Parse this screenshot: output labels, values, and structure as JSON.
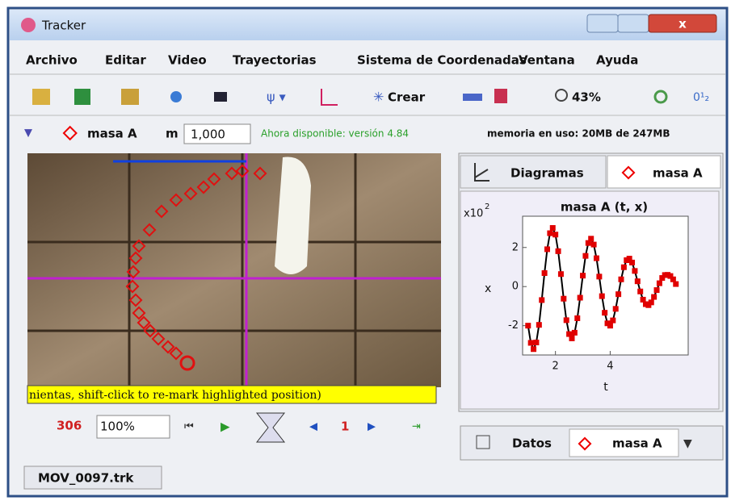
{
  "window": {
    "title": "Tracker"
  },
  "menu": [
    "Archivo",
    "Editar",
    "Video",
    "Trayectorias",
    "Sistema de Coordenadas",
    "Ventana",
    "Ayuda"
  ],
  "toolbar": {
    "create": "Crear",
    "zoom": "43%"
  },
  "trackbar": {
    "track": "masa A",
    "mass_label": "m",
    "mass": "1,000",
    "update": "Ahora disponible: versión 4.84",
    "memory": "memoria en uso: 20MB de 247MB"
  },
  "video": {
    "status": "nientas, shift-click to re-mark highlighted position)"
  },
  "player": {
    "frame": "306",
    "rate": "100%",
    "step": "1"
  },
  "tabs": {
    "plot_tab": "Diagramas",
    "track_tab": "masa A",
    "data_tab": "Datos",
    "data_track": "masa A",
    "file": "MOV_0097.trk"
  },
  "chart_data": {
    "type": "line",
    "title": "masa A (t, x)",
    "x_label": "t",
    "y_label": "x",
    "y_multiplier": {
      "base": "x10",
      "exponent": "2"
    },
    "line_color": "#000000",
    "marker_color": "#e00000",
    "x": [
      1.0,
      1.1,
      1.2,
      1.3,
      1.4,
      1.5,
      1.6,
      1.7,
      1.8,
      1.9,
      2.0,
      2.1,
      2.2,
      2.3,
      2.4,
      2.5,
      2.6,
      2.7,
      2.8,
      2.9,
      3.0,
      3.1,
      3.2,
      3.3,
      3.4,
      3.5,
      3.6,
      3.7,
      3.8,
      3.9,
      4.0,
      4.1,
      4.2,
      4.3,
      4.4,
      4.5,
      4.6,
      4.7,
      4.8,
      4.9,
      5.0,
      5.1,
      5.2,
      5.3,
      5.4,
      5.5,
      5.6,
      5.7,
      5.8,
      5.9,
      6.0,
      6.1,
      6.2,
      6.3,
      6.4
    ],
    "values": [
      -2.0,
      -2.88,
      -3.2,
      -2.86,
      -1.96,
      -0.69,
      0.69,
      1.91,
      2.73,
      3.0,
      2.66,
      1.81,
      0.64,
      -0.62,
      -1.72,
      -2.43,
      -2.65,
      -2.36,
      -1.62,
      -0.57,
      0.56,
      1.57,
      2.23,
      2.45,
      2.15,
      1.45,
      0.51,
      -0.49,
      -1.34,
      -1.88,
      -2.0,
      -1.73,
      -1.14,
      -0.39,
      0.37,
      0.99,
      1.35,
      1.43,
      1.23,
      0.8,
      0.27,
      -0.25,
      -0.67,
      -0.9,
      -0.95,
      -0.81,
      -0.53,
      -0.18,
      0.17,
      0.44,
      0.59,
      0.6,
      0.54,
      0.37,
      0.13
    ],
    "xlim": [
      0.8,
      6.85
    ],
    "ylim": [
      -3.5,
      3.6
    ],
    "xticks": [
      2,
      4
    ],
    "yticks": [
      -2,
      0,
      2
    ]
  }
}
